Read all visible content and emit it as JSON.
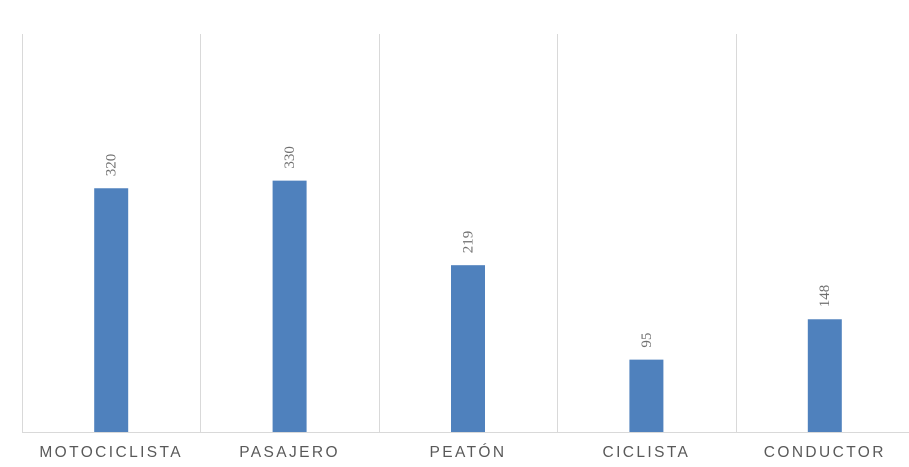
{
  "chart_data": {
    "type": "bar",
    "categories": [
      "MOTOCICLISTA",
      "PASAJERO",
      "PEATÓN",
      "CICLISTA",
      "CONDUCTOR"
    ],
    "values": [
      320,
      330,
      219,
      95,
      148
    ],
    "title": "",
    "xlabel": "",
    "ylabel": "",
    "ylim": [
      0,
      350
    ],
    "grid": "vertical category separators",
    "legend": "none",
    "bar_color": "#4f81bd",
    "grid_color": "#d9d9d9",
    "label_color": "#595959"
  }
}
